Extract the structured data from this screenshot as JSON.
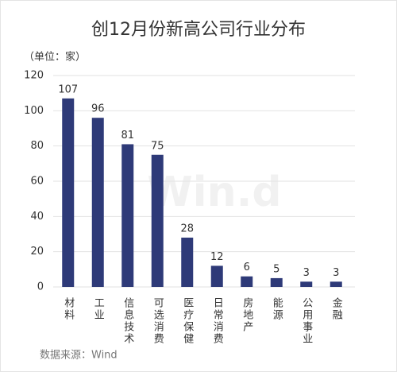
{
  "chart_data": {
    "type": "bar",
    "title": "创12月份新高公司行业分布",
    "unit_label": "（单位：家）",
    "categories": [
      "材料",
      "工业",
      "信息技术",
      "可选消费",
      "医疗保健",
      "日常消费",
      "房地产",
      "能源",
      "公用事业",
      "金融"
    ],
    "values": [
      107,
      96,
      81,
      75,
      28,
      12,
      6,
      5,
      3,
      3
    ],
    "color": "#2e3a78",
    "ylim": [
      0,
      120
    ],
    "yticks": [
      0,
      20,
      40,
      60,
      80,
      100,
      120
    ],
    "grid": true,
    "watermark": "Win.d",
    "source": "数据来源：Wind"
  }
}
